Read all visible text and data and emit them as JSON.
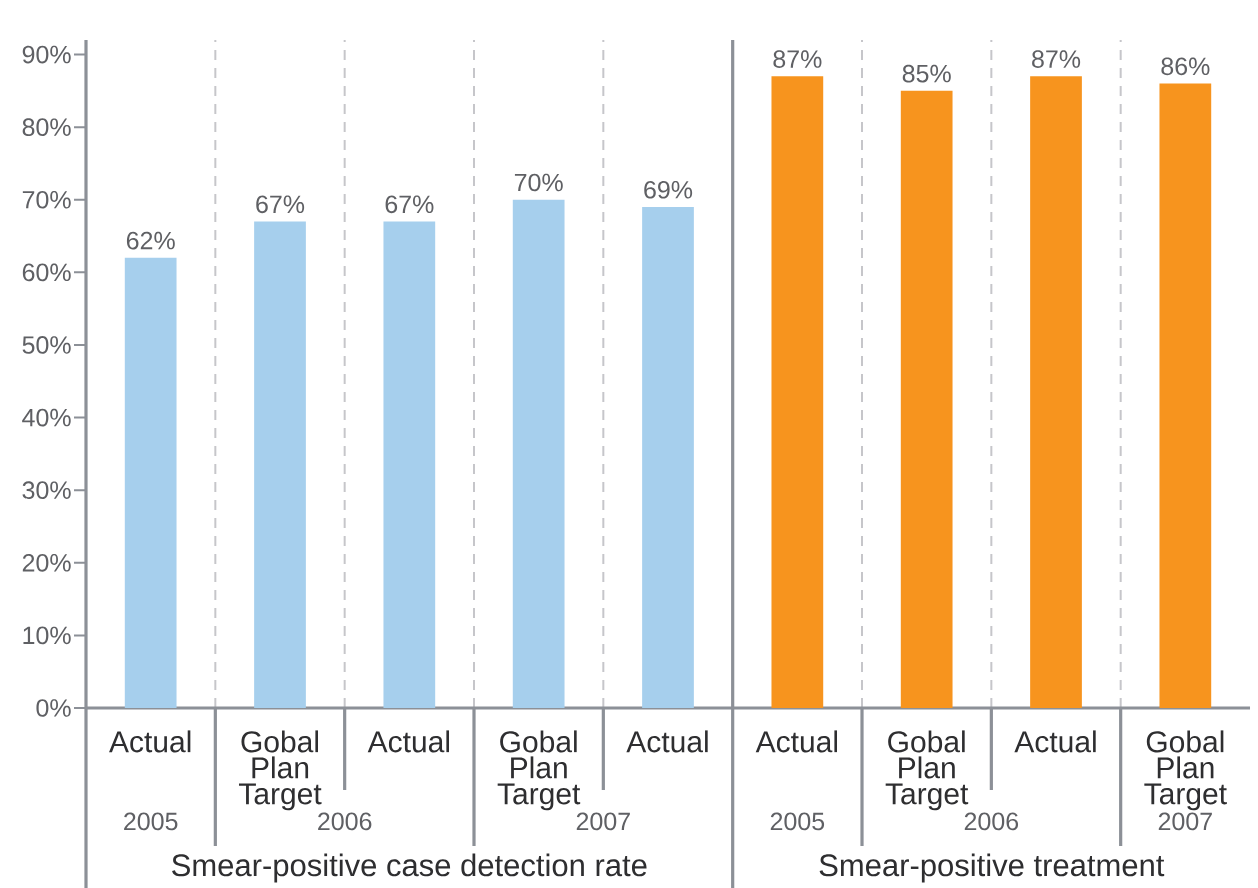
{
  "chart_data": [
    {
      "type": "bar",
      "categories": [
        "Actual",
        "Gobal Plan Target",
        "Actual",
        "Gobal Plan Target",
        "Actual"
      ],
      "values": [
        62,
        67,
        67,
        70,
        69
      ],
      "value_labels": [
        "62%",
        "67%",
        "67%",
        "70%",
        "69%"
      ],
      "color": "#a6cfed",
      "xlabel": "Smear-positive case detection rate",
      "annotations": [
        "2005",
        "2006",
        "2007"
      ],
      "ylim": [
        0,
        92
      ],
      "yticks": [
        {
          "value": 0,
          "label": "0%"
        },
        {
          "value": 10,
          "label": "10%"
        },
        {
          "value": 20,
          "label": "20%"
        },
        {
          "value": 30,
          "label": "30%"
        },
        {
          "value": 40,
          "label": "40%"
        },
        {
          "value": 50,
          "label": "50%"
        },
        {
          "value": 60,
          "label": "60%"
        },
        {
          "value": 70,
          "label": "70%"
        },
        {
          "value": 80,
          "label": "80%"
        },
        {
          "value": 90,
          "label": "90%"
        }
      ],
      "grid": "x"
    },
    {
      "type": "bar",
      "categories": [
        "Actual",
        "Gobal Plan Target",
        "Actual",
        "Gobal Plan Target"
      ],
      "values": [
        87,
        85,
        87,
        86
      ],
      "value_labels": [
        "87%",
        "85%",
        "87%",
        "86%"
      ],
      "color": "#f7941e",
      "xlabel": "Smear-positive treatment",
      "annotations": [
        "2005",
        "2006",
        "2007"
      ],
      "ylim": [
        0,
        92
      ],
      "tick_labels": "x",
      "grid": "x"
    }
  ]
}
